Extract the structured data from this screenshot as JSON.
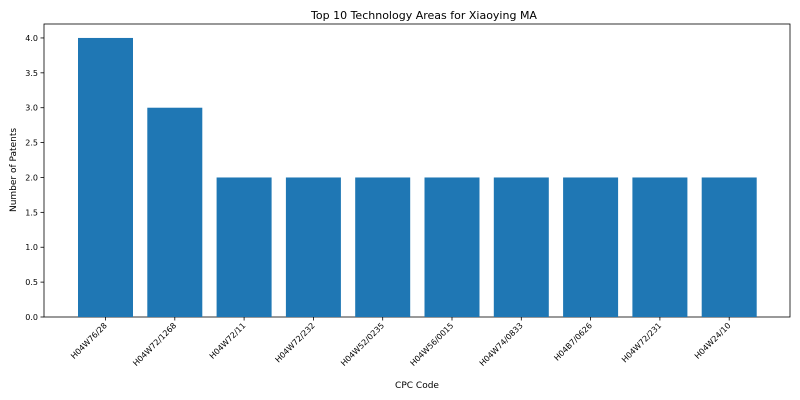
{
  "chart_data": {
    "type": "bar",
    "title": "Top 10 Technology Areas for Xiaoying MA",
    "xlabel": "CPC Code",
    "ylabel": "Number of Patents",
    "categories": [
      "H04W76/28",
      "H04W72/1268",
      "H04W72/11",
      "H04W72/232",
      "H04W52/0235",
      "H04W56/0015",
      "H04W74/0833",
      "H04B7/0626",
      "H04W72/231",
      "H04W24/10"
    ],
    "values": [
      4,
      3,
      2,
      2,
      2,
      2,
      2,
      2,
      2,
      2
    ],
    "ylim": [
      0,
      4.2
    ],
    "yticks": [
      "0.0",
      "0.5",
      "1.0",
      "1.5",
      "2.0",
      "2.5",
      "3.0",
      "3.5",
      "4.0"
    ],
    "bar_color": "#1f77b4",
    "grid": false,
    "legend": "none"
  }
}
